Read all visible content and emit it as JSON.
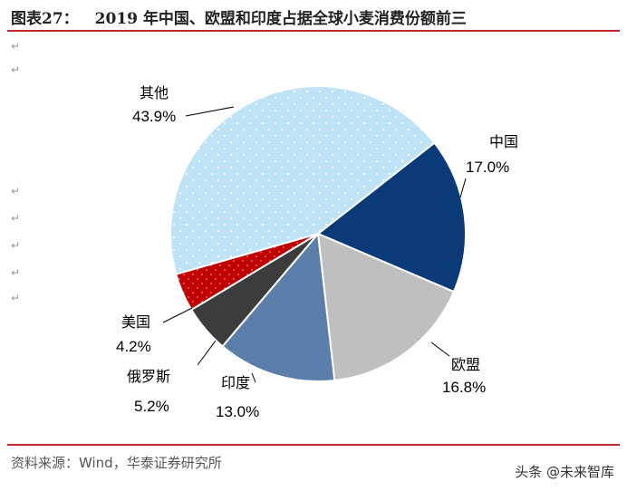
{
  "header": {
    "figure_label": "图表27：",
    "title": "2019 年中国、欧盟和印度占据全球小麦消费份额前三"
  },
  "footer": {
    "source": "资料来源：Wind，华泰证券研究所"
  },
  "watermark": "头条 @未来智库",
  "colors": {
    "rule": "#c0282c",
    "china": "#0b3a78",
    "eu": "#bfbfbf",
    "india": "#5b7faa",
    "russia": "#3c3c3c",
    "usa": "#c00000",
    "others": "#bfe3f6"
  },
  "chart_data": {
    "type": "pie",
    "title": "2019 年中国、欧盟和印度占据全球小麦消费份额前三",
    "slices": [
      {
        "label": "中国",
        "value": 17.0,
        "value_label": "17.0%",
        "color": "#0b3a78"
      },
      {
        "label": "欧盟",
        "value": 16.8,
        "value_label": "16.8%",
        "color": "#bfbfbf"
      },
      {
        "label": "印度",
        "value": 13.0,
        "value_label": "13.0%",
        "color": "#5b7faa"
      },
      {
        "label": "俄罗斯",
        "value": 5.2,
        "value_label": "5.2%",
        "color": "#3c3c3c"
      },
      {
        "label": "美国",
        "value": 4.2,
        "value_label": "4.2%",
        "color": "#c00000"
      },
      {
        "label": "其他",
        "value": 43.9,
        "value_label": "43.9%",
        "color": "#bfe3f6"
      }
    ],
    "start": "clockwise from about 1 o'clock",
    "legend": "none"
  }
}
